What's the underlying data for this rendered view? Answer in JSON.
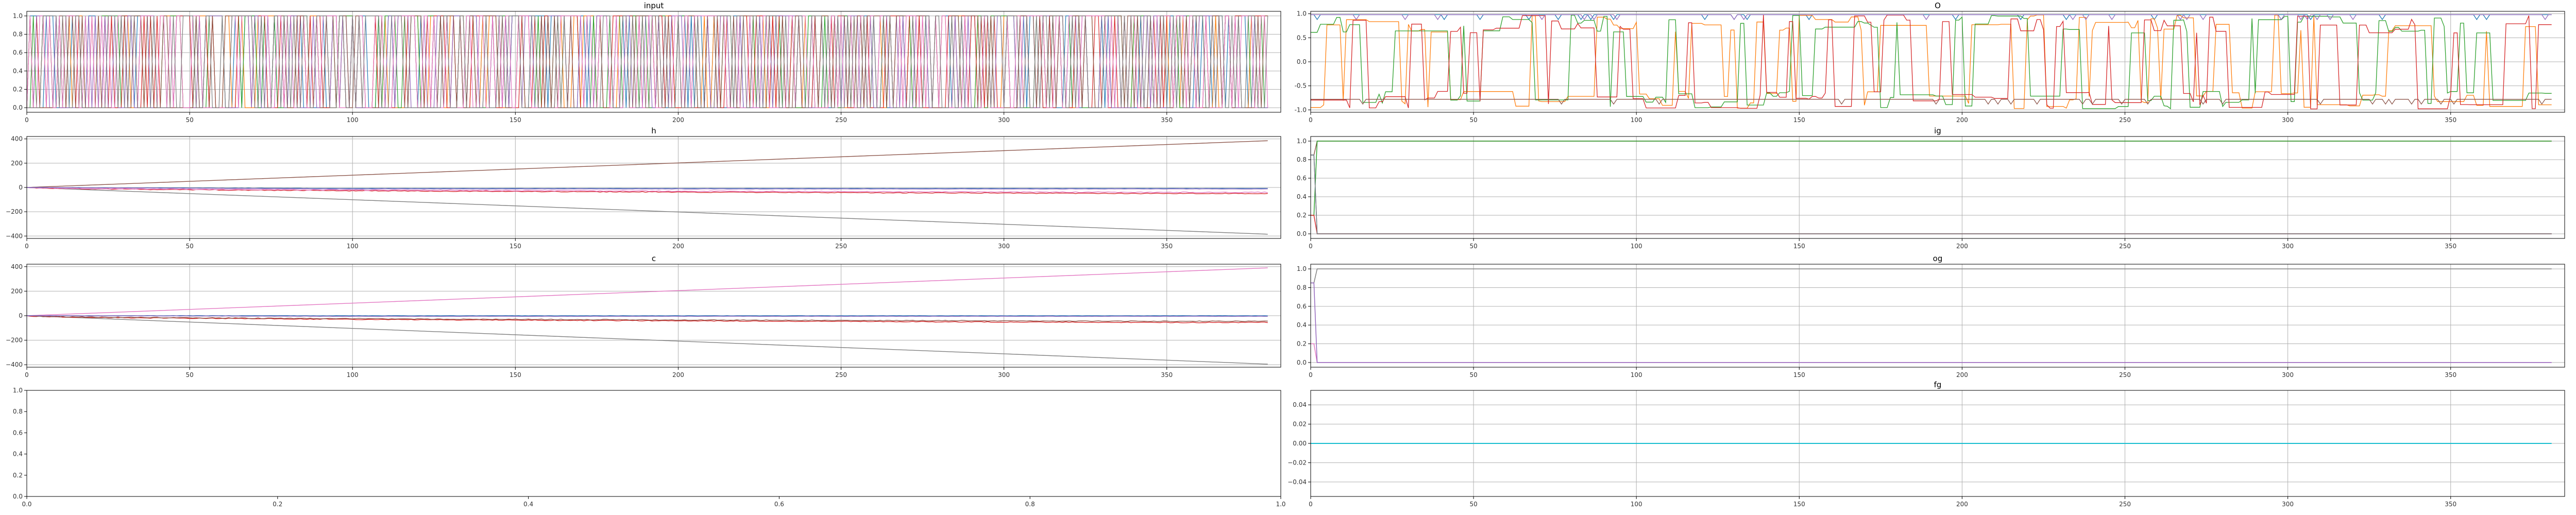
{
  "chart_data": [
    {
      "id": "input",
      "type": "line",
      "title": "input",
      "xlim": [
        0,
        385
      ],
      "ylim": [
        -0.05,
        1.05
      ],
      "xticks": [
        0,
        50,
        100,
        150,
        200,
        250,
        300,
        350
      ],
      "yticks": [
        0.0,
        0.2,
        0.4,
        0.6,
        0.8,
        1.0
      ],
      "ytick_labels": [
        "0.0",
        "0.2",
        "0.4",
        "0.6",
        "0.8",
        "1.0"
      ],
      "grid": true,
      "series_description": "many binary square-wave series (0/1), one per color",
      "series_count": 8
    },
    {
      "id": "o",
      "type": "line",
      "title": "O",
      "xlim": [
        0,
        385
      ],
      "ylim": [
        -1.05,
        1.05
      ],
      "xticks": [
        0,
        50,
        100,
        150,
        200,
        250,
        300,
        350
      ],
      "yticks": [
        -1.0,
        -0.5,
        0.0,
        0.5,
        1.0
      ],
      "ytick_labels": [
        "-1.0",
        "-0.5",
        "0.0",
        "0.5",
        "1.0"
      ],
      "grid": true,
      "series": [
        {
          "name": "",
          "color": "#1f77b4",
          "level": 0.98
        },
        {
          "name": "",
          "color": "#ff7f0e"
        },
        {
          "name": "",
          "color": "#2ca02c"
        },
        {
          "name": "",
          "color": "#d62728"
        },
        {
          "name": "",
          "color": "#9467bd",
          "level": 0.98
        },
        {
          "name": "",
          "color": "#8c564b",
          "level": -0.78
        }
      ]
    },
    {
      "id": "h",
      "type": "line",
      "title": "h",
      "xlim": [
        0,
        385
      ],
      "ylim": [
        -420,
        420
      ],
      "xticks": [
        0,
        50,
        100,
        150,
        200,
        250,
        300,
        350
      ],
      "yticks": [
        -400,
        -200,
        0,
        200,
        400
      ],
      "ytick_labels": [
        "−400",
        "−200",
        "0",
        "200",
        "400"
      ],
      "grid": true,
      "series": [
        {
          "name": "",
          "color": "#8c564b",
          "start": 0,
          "end": 385,
          "shape": "linear"
        },
        {
          "name": "",
          "color": "#7f7f7f",
          "start": 0,
          "end": -385,
          "shape": "linear"
        },
        {
          "name": "",
          "color": "#d62728",
          "start": 0,
          "end": -50,
          "shape": "curved"
        },
        {
          "name": "",
          "color": "#e377c2",
          "start": 0,
          "end": -40,
          "shape": "curved"
        },
        {
          "name": "",
          "color": "#1f77b4",
          "start": 0,
          "end": -8,
          "shape": "flat"
        },
        {
          "name": "",
          "color": "#9467bd",
          "start": 0,
          "end": -12,
          "shape": "flat"
        }
      ]
    },
    {
      "id": "ig",
      "type": "line",
      "title": "ig",
      "xlim": [
        0,
        385
      ],
      "ylim": [
        -0.05,
        1.05
      ],
      "xticks": [
        0,
        50,
        100,
        150,
        200,
        250,
        300,
        350
      ],
      "yticks": [
        0.0,
        0.2,
        0.4,
        0.6,
        0.8,
        1.0
      ],
      "ytick_labels": [
        "0.0",
        "0.2",
        "0.4",
        "0.6",
        "0.8",
        "1.0"
      ],
      "grid": true,
      "series": [
        {
          "name": "",
          "color": "#8c564b",
          "level": 1.0
        },
        {
          "name": "",
          "color": "#2ca02c",
          "level": 1.0
        },
        {
          "name": "",
          "color": "#1f77b4",
          "level": 0.0
        },
        {
          "name": "",
          "color": "#d62728",
          "level": 0.0
        },
        {
          "name": "",
          "color": "#7f7f7f",
          "level": 0.0
        }
      ]
    },
    {
      "id": "c",
      "type": "line",
      "title": "c",
      "xlim": [
        0,
        385
      ],
      "ylim": [
        -420,
        420
      ],
      "xticks": [
        0,
        50,
        100,
        150,
        200,
        250,
        300,
        350
      ],
      "yticks": [
        -400,
        -200,
        0,
        200,
        400
      ],
      "ytick_labels": [
        "−400",
        "−200",
        "0",
        "200",
        "400"
      ],
      "grid": true,
      "series": [
        {
          "name": "",
          "color": "#e377c2",
          "start": 0,
          "end": 390,
          "shape": "linear"
        },
        {
          "name": "",
          "color": "#7f7f7f",
          "start": 0,
          "end": -395,
          "shape": "linear"
        },
        {
          "name": "",
          "color": "#d62728",
          "start": 0,
          "end": -55,
          "shape": "curved"
        },
        {
          "name": "",
          "color": "#8c564b",
          "start": 0,
          "end": -45,
          "shape": "curved"
        },
        {
          "name": "",
          "color": "#1f77b4",
          "start": 0,
          "end": 0,
          "shape": "flat"
        },
        {
          "name": "",
          "color": "#9467bd",
          "start": 0,
          "end": -5,
          "shape": "flat"
        }
      ]
    },
    {
      "id": "og",
      "type": "line",
      "title": "og",
      "xlim": [
        0,
        385
      ],
      "ylim": [
        -0.05,
        1.05
      ],
      "xticks": [
        0,
        50,
        100,
        150,
        200,
        250,
        300,
        350
      ],
      "yticks": [
        0.0,
        0.2,
        0.4,
        0.6,
        0.8,
        1.0
      ],
      "ytick_labels": [
        "0.0",
        "0.2",
        "0.4",
        "0.6",
        "0.8",
        "1.0"
      ],
      "grid": true,
      "series": [
        {
          "name": "",
          "color": "#7f7f7f",
          "level": 1.0
        },
        {
          "name": "",
          "color": "#e377c2",
          "level": 0.0
        },
        {
          "name": "",
          "color": "#9467bd",
          "level": 0.0
        }
      ]
    },
    {
      "id": "empty",
      "type": "line",
      "title": "",
      "xlim": [
        0.0,
        1.0
      ],
      "ylim": [
        0.0,
        1.0
      ],
      "xticks": [
        0.0,
        0.2,
        0.4,
        0.6,
        0.8,
        1.0
      ],
      "xtick_labels": [
        "0.0",
        "0.2",
        "0.4",
        "0.6",
        "0.8",
        "1.0"
      ],
      "yticks": [
        0.0,
        0.2,
        0.4,
        0.6,
        0.8,
        1.0
      ],
      "ytick_labels": [
        "0.0",
        "0.2",
        "0.4",
        "0.6",
        "0.8",
        "1.0"
      ],
      "grid": false,
      "series": []
    },
    {
      "id": "fg",
      "type": "line",
      "title": "fg",
      "xlim": [
        0,
        385
      ],
      "ylim": [
        -0.055,
        0.055
      ],
      "xticks": [
        0,
        50,
        100,
        150,
        200,
        250,
        300,
        350
      ],
      "yticks": [
        -0.04,
        -0.02,
        0.0,
        0.02,
        0.04
      ],
      "ytick_labels": [
        "−0.04",
        "−0.02",
        "0.00",
        "0.02",
        "0.04"
      ],
      "grid": true,
      "series": [
        {
          "name": "",
          "color": "#17becf",
          "level": 0.0
        }
      ]
    }
  ]
}
